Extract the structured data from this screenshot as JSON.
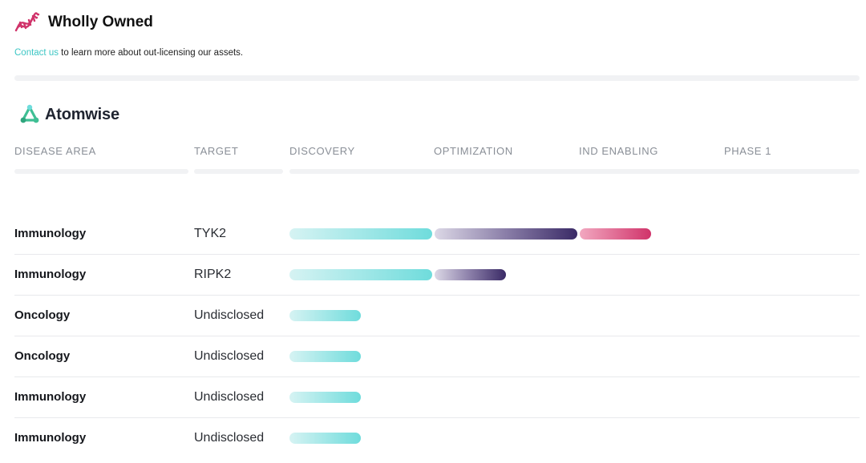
{
  "wholly_owned": {
    "icon": "dna-helix-icon",
    "title": "Wholly Owned",
    "contact_link": "Contact us",
    "contact_text": " to learn more about out-licensing our assets."
  },
  "brand": {
    "icon": "atomwise-logo-icon",
    "name": "Atomwise"
  },
  "columns": [
    "DISEASE AREA",
    "TARGET",
    "DISCOVERY",
    "OPTIMIZATION",
    "IND ENABLING",
    "PHASE 1"
  ],
  "colors": {
    "discovery": "#6fdcdc",
    "optimization": "#3a2a66",
    "ind_enabling": "#d0336a",
    "link": "#3cc6c4"
  },
  "rows": [
    {
      "area": "Immunology",
      "target": "TYK2",
      "progress": {
        "discovery": 1.0,
        "optimization": 1.0,
        "ind_enabling": 0.5
      }
    },
    {
      "area": "Immunology",
      "target": "RIPK2",
      "progress": {
        "discovery": 1.0,
        "optimization": 0.5
      }
    },
    {
      "area": "Oncology",
      "target": "Undisclosed",
      "progress": {
        "discovery": 0.5
      }
    },
    {
      "area": "Oncology",
      "target": "Undisclosed",
      "progress": {
        "discovery": 0.5
      }
    },
    {
      "area": "Immunology",
      "target": "Undisclosed",
      "progress": {
        "discovery": 0.5
      }
    },
    {
      "area": "Immunology",
      "target": "Undisclosed",
      "progress": {
        "discovery": 0.5
      }
    }
  ]
}
